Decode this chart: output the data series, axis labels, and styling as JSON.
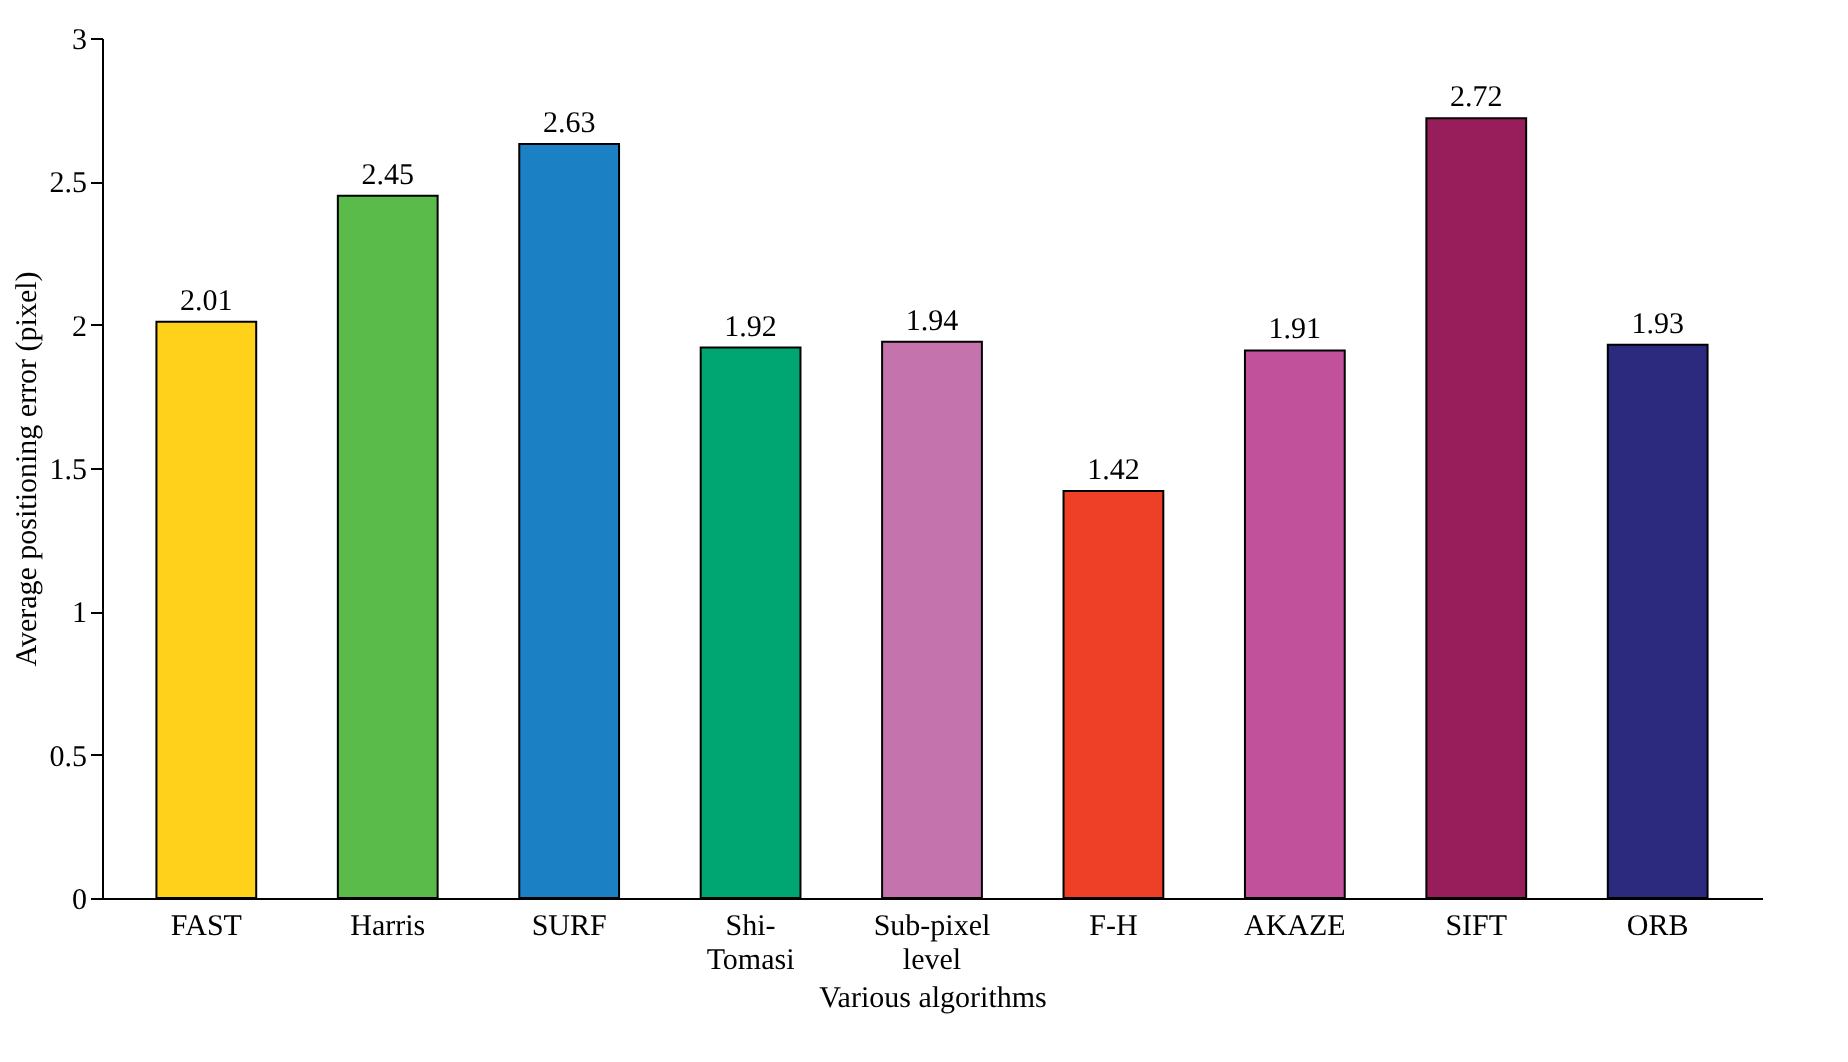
{
  "chart_data": {
    "type": "bar",
    "xlabel": "Various algorithms",
    "ylabel": "Average positioning error (pixel)",
    "categories": [
      "FAST",
      "Harris",
      "SURF",
      "Shi-Tomasi",
      "Sub-pixel level",
      "F-H",
      "AKAZE",
      "SIFT",
      "ORB"
    ],
    "values": [
      2.01,
      2.45,
      2.63,
      1.92,
      1.94,
      1.42,
      1.91,
      2.72,
      1.93
    ],
    "colors": [
      "#ffd11a",
      "#5bbb4a",
      "#1b80c4",
      "#00a672",
      "#c573ad",
      "#ee4027",
      "#c2519c",
      "#981d5b",
      "#2b2a7f"
    ],
    "ylim": [
      0,
      3
    ],
    "yticks": [
      0,
      0.5,
      1,
      1.5,
      2,
      2.5,
      3
    ],
    "grid": false,
    "legend": false,
    "data_labels": true
  }
}
